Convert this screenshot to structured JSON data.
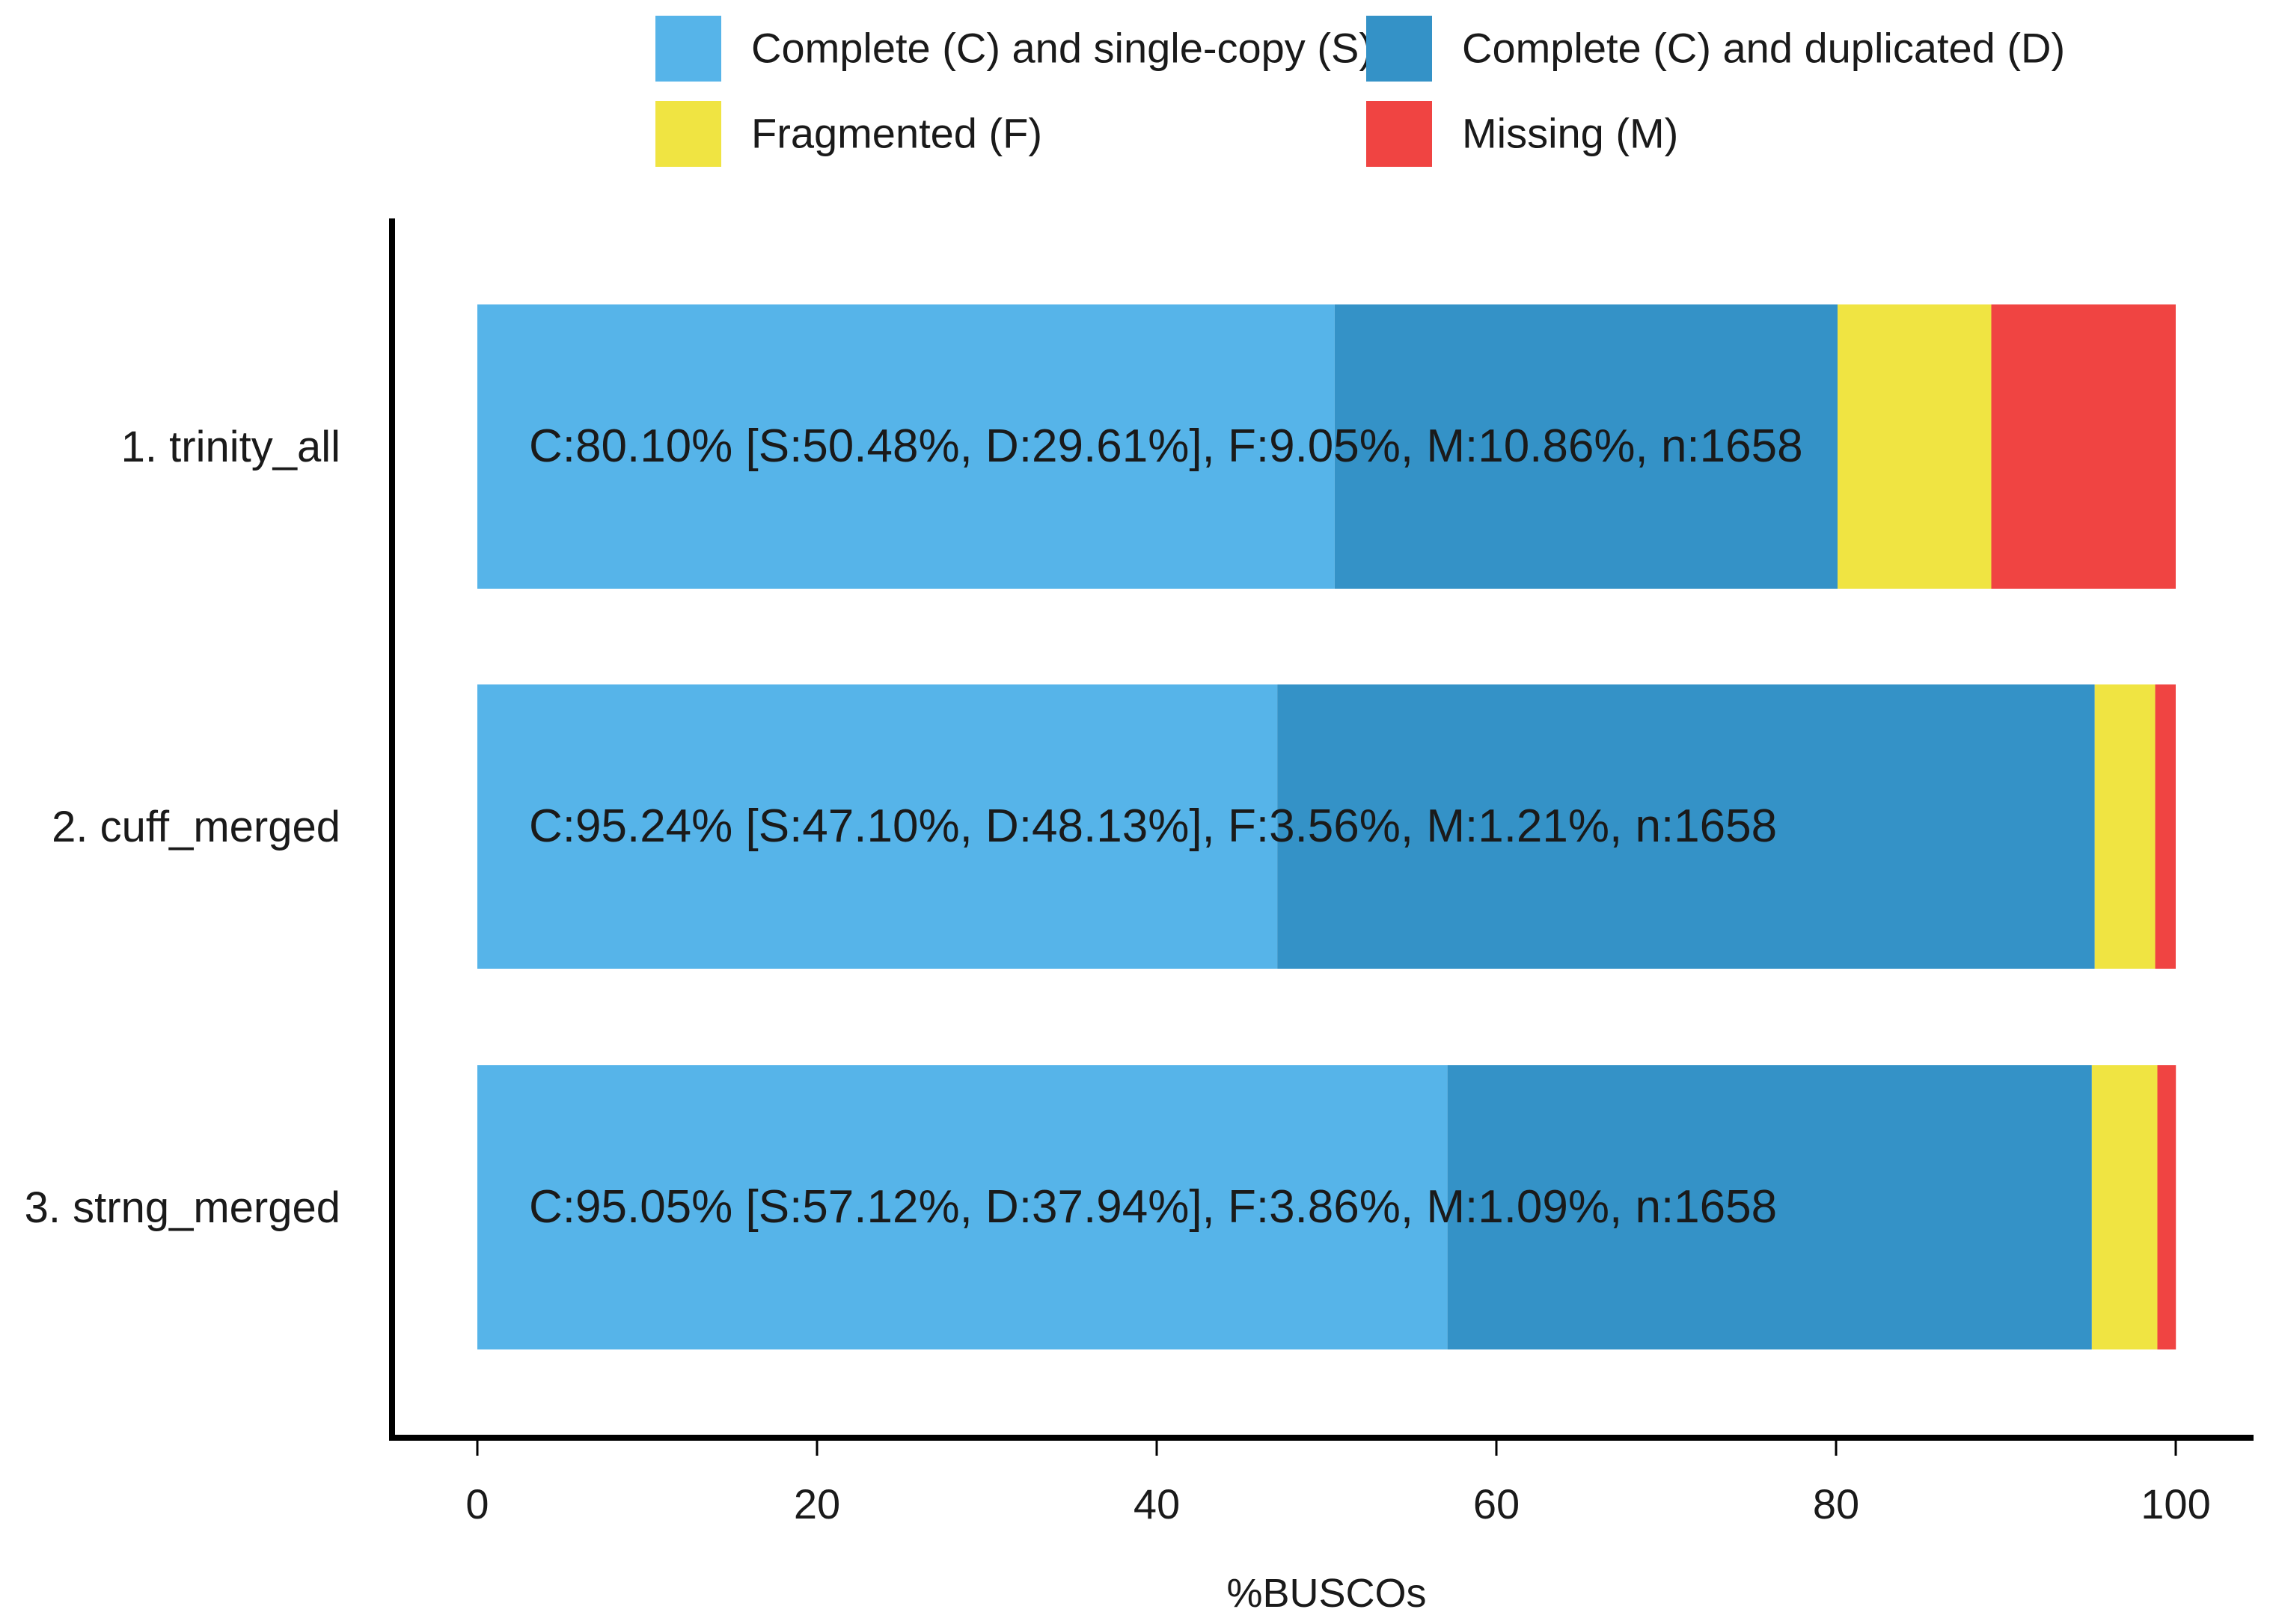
{
  "chart_data": {
    "type": "bar",
    "orientation": "horizontal",
    "stacked": true,
    "xlabel": "%BUSCOs",
    "ylabel": "",
    "xlim": [
      0,
      100
    ],
    "x_ticks": [
      0,
      20,
      40,
      60,
      80,
      100
    ],
    "grid": false,
    "legend_position": "top",
    "series": [
      {
        "key": "S",
        "name": "Complete (C) and single-copy (S)",
        "color": "#56b4e9"
      },
      {
        "key": "D",
        "name": "Complete (C) and duplicated (D)",
        "color": "#3492c7"
      },
      {
        "key": "F",
        "name": "Fragmented (F)",
        "color": "#f0e442"
      },
      {
        "key": "M",
        "name": "Missing (M)",
        "color": "#f04442"
      }
    ],
    "categories": [
      {
        "label": "1. trinity_all",
        "values": {
          "S": 50.48,
          "D": 29.61,
          "F": 9.05,
          "M": 10.86
        },
        "annotation": "C:80.10% [S:50.48%, D:29.61%], F:9.05%, M:10.86%, n:1658"
      },
      {
        "label": "2. cuff_merged",
        "values": {
          "S": 47.1,
          "D": 48.13,
          "F": 3.56,
          "M": 1.21
        },
        "annotation": "C:95.24% [S:47.10%, D:48.13%], F:3.56%, M:1.21%, n:1658"
      },
      {
        "label": "3. strng_merged",
        "values": {
          "S": 57.12,
          "D": 37.94,
          "F": 3.86,
          "M": 1.09
        },
        "annotation": "C:95.05% [S:57.12%, D:37.94%], F:3.86%, M:1.09%, n:1658"
      }
    ]
  }
}
